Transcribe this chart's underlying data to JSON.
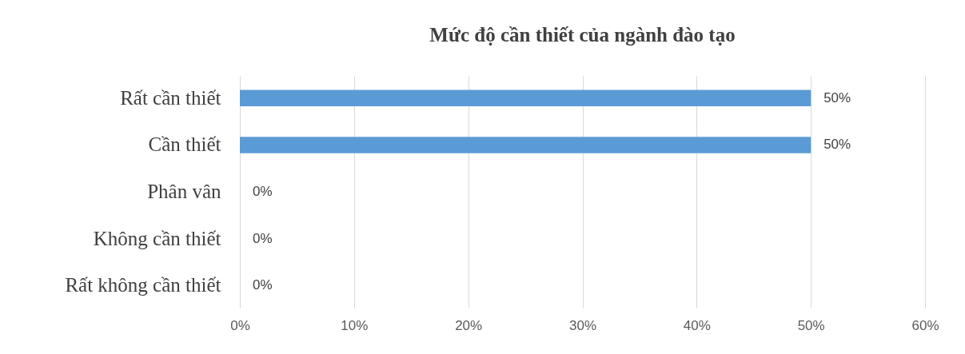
{
  "chart_data": {
    "type": "bar",
    "orientation": "horizontal",
    "title": "Mức độ cần thiết của ngành đào tạo",
    "categories": [
      "Rất cần thiết",
      "Cần thiết",
      "Phân vân",
      "Không cần thiết",
      "Rất không cần thiết"
    ],
    "values": [
      50,
      50,
      0,
      0,
      0
    ],
    "value_labels": [
      "50%",
      "50%",
      "0%",
      "0%",
      "0%"
    ],
    "color": "#5b9bd5",
    "xlim": [
      0,
      60
    ],
    "xticks": [
      {
        "value": 0,
        "label": "0%"
      },
      {
        "value": 10,
        "label": "10%"
      },
      {
        "value": 20,
        "label": "20%"
      },
      {
        "value": 30,
        "label": "30%"
      },
      {
        "value": 40,
        "label": "40%"
      },
      {
        "value": 50,
        "label": "50%"
      },
      {
        "value": 60,
        "label": "60%"
      }
    ],
    "grid": "x"
  }
}
